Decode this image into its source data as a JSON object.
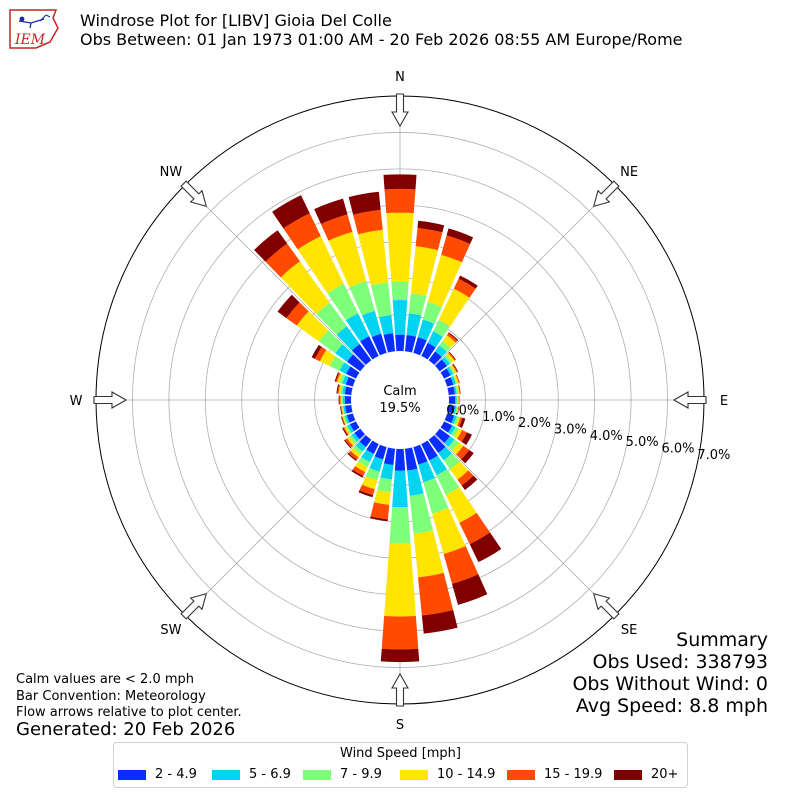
{
  "header": {
    "logo_text": "IEM",
    "title": "Windrose Plot for [LIBV] Gioia Del Colle",
    "subtitle": "Obs Between: 01 Jan 1973 01:00 AM - 20 Feb 2026 08:55 AM Europe/Rome"
  },
  "notes": {
    "calm": "Calm values are < 2.0 mph",
    "convention": "Bar Convention: Meteorology",
    "flow": "Flow arrows relative to plot center.",
    "generated": "Generated: 20 Feb 2026"
  },
  "summary": {
    "title": "Summary",
    "obs_used": "Obs Used: 338793",
    "obs_without_wind": "Obs Without Wind: 0",
    "avg_speed": "Avg Speed: 8.8 mph"
  },
  "legend": {
    "title": "Wind Speed [mph]",
    "items": [
      {
        "label": "2 - 4.9",
        "color": "#0a2dff"
      },
      {
        "label": "5 - 6.9",
        "color": "#00d4f0"
      },
      {
        "label": "7 - 9.9",
        "color": "#7dff7a"
      },
      {
        "label": "10 - 14.9",
        "color": "#ffe500"
      },
      {
        "label": "15 - 19.9",
        "color": "#ff4a00"
      },
      {
        "label": "20+",
        "color": "#800000"
      }
    ]
  },
  "chart_data": {
    "type": "windrose",
    "calm_label": "Calm",
    "calm_percent": "19.5%",
    "radial_unit": "percent",
    "radial_ticks": [
      "0.0%",
      "1.0%",
      "2.0%",
      "3.0%",
      "4.0%",
      "5.0%",
      "6.0%",
      "7.0%"
    ],
    "rmax": 7.0,
    "direction_labels": [
      "N",
      "NE",
      "E",
      "SE",
      "S",
      "SW",
      "W",
      "NW"
    ],
    "sector_width_deg": 10,
    "bins": [
      "2 - 4.9",
      "5 - 6.9",
      "7 - 9.9",
      "10 - 14.9",
      "15 - 19.9",
      "20+"
    ],
    "directions_deg": [
      0,
      10,
      20,
      30,
      40,
      50,
      60,
      70,
      80,
      90,
      100,
      110,
      120,
      130,
      140,
      150,
      160,
      170,
      180,
      190,
      200,
      210,
      220,
      230,
      240,
      250,
      260,
      270,
      280,
      290,
      300,
      310,
      320,
      330,
      340,
      350
    ],
    "cumulative_percent": [
      [
        0.45,
        1.4,
        1.9,
        3.8,
        4.45,
        4.85
      ],
      [
        0.45,
        1.05,
        1.6,
        2.9,
        3.4,
        3.6
      ],
      [
        0.45,
        0.95,
        1.45,
        2.8,
        3.35,
        3.55
      ],
      [
        0.4,
        0.75,
        1.1,
        2.05,
        2.35,
        2.45
      ],
      [
        0.3,
        0.5,
        0.65,
        0.85,
        0.92,
        0.95
      ],
      [
        0.25,
        0.35,
        0.42,
        0.5,
        0.53,
        0.55
      ],
      [
        0.2,
        0.28,
        0.33,
        0.38,
        0.41,
        0.43
      ],
      [
        0.18,
        0.25,
        0.29,
        0.33,
        0.35,
        0.36
      ],
      [
        0.17,
        0.22,
        0.26,
        0.3,
        0.32,
        0.33
      ],
      [
        0.17,
        0.21,
        0.24,
        0.27,
        0.28,
        0.29
      ],
      [
        0.17,
        0.21,
        0.24,
        0.27,
        0.28,
        0.29
      ],
      [
        0.2,
        0.27,
        0.33,
        0.38,
        0.44,
        0.52
      ],
      [
        0.25,
        0.35,
        0.45,
        0.55,
        0.7,
        0.85
      ],
      [
        0.35,
        0.5,
        0.65,
        0.8,
        1.0,
        1.15
      ],
      [
        0.45,
        0.7,
        1.0,
        1.35,
        1.55,
        1.7
      ],
      [
        0.5,
        0.95,
        1.55,
        2.4,
        3.05,
        3.6
      ],
      [
        0.5,
        1.0,
        1.9,
        3.05,
        3.9,
        4.5
      ],
      [
        0.6,
        1.3,
        2.35,
        3.55,
        4.6,
        5.1
      ],
      [
        0.6,
        1.6,
        2.6,
        4.6,
        5.5,
        5.85
      ],
      [
        0.45,
        0.85,
        1.2,
        1.55,
        1.95,
        2.0
      ],
      [
        0.35,
        0.7,
        0.95,
        1.2,
        1.37,
        1.43
      ],
      [
        0.3,
        0.55,
        0.7,
        0.85,
        0.97,
        1.02
      ],
      [
        0.25,
        0.4,
        0.5,
        0.6,
        0.68,
        0.72
      ],
      [
        0.2,
        0.3,
        0.38,
        0.45,
        0.52,
        0.55
      ],
      [
        0.18,
        0.26,
        0.31,
        0.36,
        0.39,
        0.42
      ],
      [
        0.17,
        0.23,
        0.27,
        0.3,
        0.32,
        0.34
      ],
      [
        0.17,
        0.22,
        0.25,
        0.27,
        0.29,
        0.31
      ],
      [
        0.17,
        0.22,
        0.26,
        0.29,
        0.32,
        0.34
      ],
      [
        0.18,
        0.25,
        0.3,
        0.35,
        0.38,
        0.41
      ],
      [
        0.2,
        0.3,
        0.38,
        0.45,
        0.49,
        0.52
      ],
      [
        0.3,
        0.5,
        0.8,
        1.1,
        1.25,
        1.35
      ],
      [
        0.45,
        0.85,
        1.4,
        2.15,
        2.5,
        2.8
      ],
      [
        0.55,
        1.15,
        1.95,
        3.35,
        3.95,
        4.4
      ],
      [
        0.6,
        1.3,
        2.2,
        3.65,
        4.35,
        4.9
      ],
      [
        0.55,
        1.2,
        2.05,
        3.45,
        3.95,
        4.4
      ],
      [
        0.5,
        1.0,
        1.9,
        3.35,
        3.9,
        4.4
      ]
    ]
  }
}
